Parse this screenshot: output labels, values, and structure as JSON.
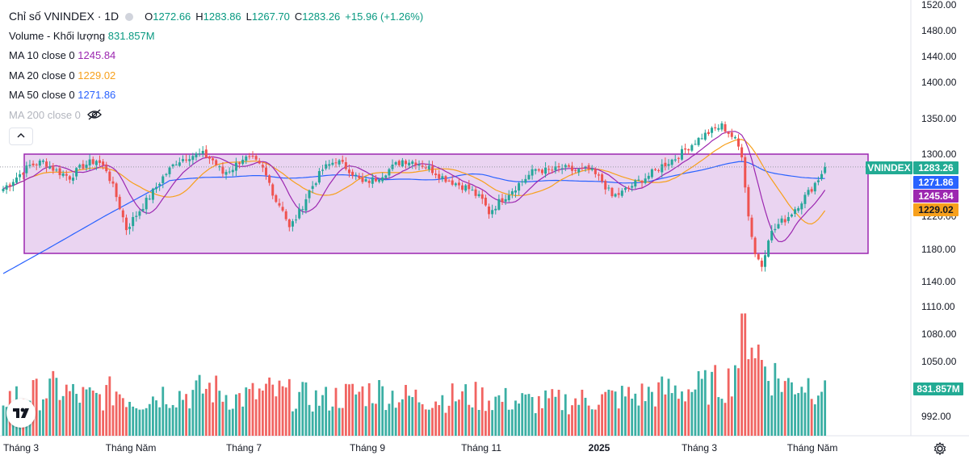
{
  "header": {
    "title": "Chỉ số VNINDEX · 1D",
    "ohlc": {
      "o_label": "O",
      "o": "1272.66",
      "h_label": "H",
      "h": "1283.86",
      "l_label": "L",
      "l": "1267.70",
      "c_label": "C",
      "c": "1283.26",
      "change": "+15.96 (+1.26%)"
    }
  },
  "indicators": {
    "volume": {
      "label": "Volume - Khối lượng",
      "value": "831.857M"
    },
    "ma10": {
      "label": "MA 10 close 0",
      "value": "1245.84",
      "color": "#9c27b0"
    },
    "ma20": {
      "label": "MA 20 close 0",
      "value": "1229.02",
      "color": "#f7a01c"
    },
    "ma50": {
      "label": "MA 50 close 0",
      "value": "1271.86",
      "color": "#2962ff"
    },
    "ma200": {
      "label": "MA 200 close 0"
    }
  },
  "price_tags": {
    "symbol": "VNINDEX",
    "last": "1283.26",
    "ma50": "1271.86",
    "ma10": "1245.84",
    "ma20": "1229.02",
    "volume": "831.857M"
  },
  "colors": {
    "up": "#26a69a",
    "down": "#ef5350",
    "box_fill": "#e6cdee",
    "box_border": "#9c27b0",
    "symbol_tag": "#22ab94",
    "ma50_tag": "#2962ff",
    "ma10_tag": "#9c27b0",
    "ma20_tag": "#f7a01c"
  },
  "icons": {
    "hide": "eye-crossed-icon",
    "collapse": "chevron-up-icon",
    "logo": "tradingview-logo",
    "settings": "gear-icon"
  },
  "chart_data": {
    "type": "candlestick",
    "y_ticks": [
      "1520.00",
      "1480.00",
      "1440.00",
      "1400.00",
      "1350.00",
      "1300.00",
      "1260.00",
      "1220.00",
      "1180.00",
      "1140.00",
      "1110.00",
      "1080.00",
      "1050.00",
      "992.00"
    ],
    "x_ticks": [
      "Tháng 3",
      "Tháng Năm",
      "Tháng 7",
      "Tháng 9",
      "Tháng 11",
      "2025",
      "Tháng 3",
      "Tháng Năm"
    ],
    "ylim": [
      992,
      1520
    ],
    "range_box": {
      "top": 1300,
      "bottom": 1175
    },
    "last_close": 1283.26,
    "series_summary": [
      {
        "name": "MA 10 close 0",
        "last": 1245.84
      },
      {
        "name": "MA 20 close 0",
        "last": 1229.02
      },
      {
        "name": "MA 50 close 0",
        "last": 1271.86
      }
    ],
    "close_path": [
      [
        0,
        1255
      ],
      [
        4,
        1270
      ],
      [
        8,
        1285
      ],
      [
        12,
        1290
      ],
      [
        16,
        1278
      ],
      [
        20,
        1270
      ],
      [
        24,
        1285
      ],
      [
        28,
        1292
      ],
      [
        31,
        1280
      ],
      [
        34,
        1245
      ],
      [
        37,
        1205
      ],
      [
        40,
        1222
      ],
      [
        44,
        1245
      ],
      [
        48,
        1270
      ],
      [
        52,
        1290
      ],
      [
        56,
        1298
      ],
      [
        60,
        1300
      ],
      [
        63,
        1292
      ],
      [
        66,
        1275
      ],
      [
        69,
        1282
      ],
      [
        72,
        1295
      ],
      [
        75,
        1293
      ],
      [
        78,
        1280
      ],
      [
        80,
        1262
      ],
      [
        82,
        1240
      ],
      [
        84,
        1230
      ],
      [
        86,
        1205
      ],
      [
        89,
        1225
      ],
      [
        92,
        1252
      ],
      [
        96,
        1280
      ],
      [
        100,
        1292
      ],
      [
        104,
        1280
      ],
      [
        108,
        1262
      ],
      [
        112,
        1268
      ],
      [
        116,
        1280
      ],
      [
        120,
        1292
      ],
      [
        124,
        1290
      ],
      [
        128,
        1282
      ],
      [
        132,
        1270
      ],
      [
        136,
        1262
      ],
      [
        140,
        1255
      ],
      [
        144,
        1240
      ],
      [
        146,
        1225
      ],
      [
        149,
        1238
      ],
      [
        152,
        1250
      ],
      [
        156,
        1265
      ],
      [
        160,
        1280
      ],
      [
        164,
        1278
      ],
      [
        168,
        1282
      ],
      [
        172,
        1278
      ],
      [
        176,
        1280
      ],
      [
        180,
        1265
      ],
      [
        183,
        1245
      ],
      [
        186,
        1250
      ],
      [
        190,
        1262
      ],
      [
        194,
        1272
      ],
      [
        198,
        1285
      ],
      [
        202,
        1295
      ],
      [
        206,
        1310
      ],
      [
        210,
        1325
      ],
      [
        213,
        1333
      ],
      [
        216,
        1340
      ],
      [
        218,
        1330
      ],
      [
        220,
        1320
      ],
      [
        222,
        1300
      ],
      [
        224,
        1220
      ],
      [
        226,
        1175
      ],
      [
        228,
        1160
      ],
      [
        230,
        1195
      ],
      [
        233,
        1210
      ],
      [
        236,
        1220
      ],
      [
        239,
        1235
      ],
      [
        242,
        1250
      ],
      [
        245,
        1268
      ],
      [
        247,
        1283
      ]
    ],
    "volume_path": [
      [
        0,
        580
      ],
      [
        12,
        640
      ],
      [
        16,
        720
      ],
      [
        22,
        600
      ],
      [
        28,
        560
      ],
      [
        34,
        680
      ],
      [
        40,
        520
      ],
      [
        48,
        640
      ],
      [
        56,
        620
      ],
      [
        62,
        720
      ],
      [
        70,
        560
      ],
      [
        80,
        660
      ],
      [
        88,
        600
      ],
      [
        96,
        540
      ],
      [
        104,
        620
      ],
      [
        112,
        680
      ],
      [
        120,
        580
      ],
      [
        130,
        560
      ],
      [
        140,
        600
      ],
      [
        150,
        540
      ],
      [
        160,
        500
      ],
      [
        170,
        520
      ],
      [
        180,
        560
      ],
      [
        190,
        600
      ],
      [
        200,
        680
      ],
      [
        210,
        720
      ],
      [
        218,
        820
      ],
      [
        222,
        1350
      ],
      [
        224,
        1700
      ],
      [
        226,
        1400
      ],
      [
        228,
        1100
      ],
      [
        232,
        900
      ],
      [
        236,
        760
      ],
      [
        240,
        820
      ],
      [
        244,
        760
      ],
      [
        247,
        831.857
      ]
    ]
  }
}
